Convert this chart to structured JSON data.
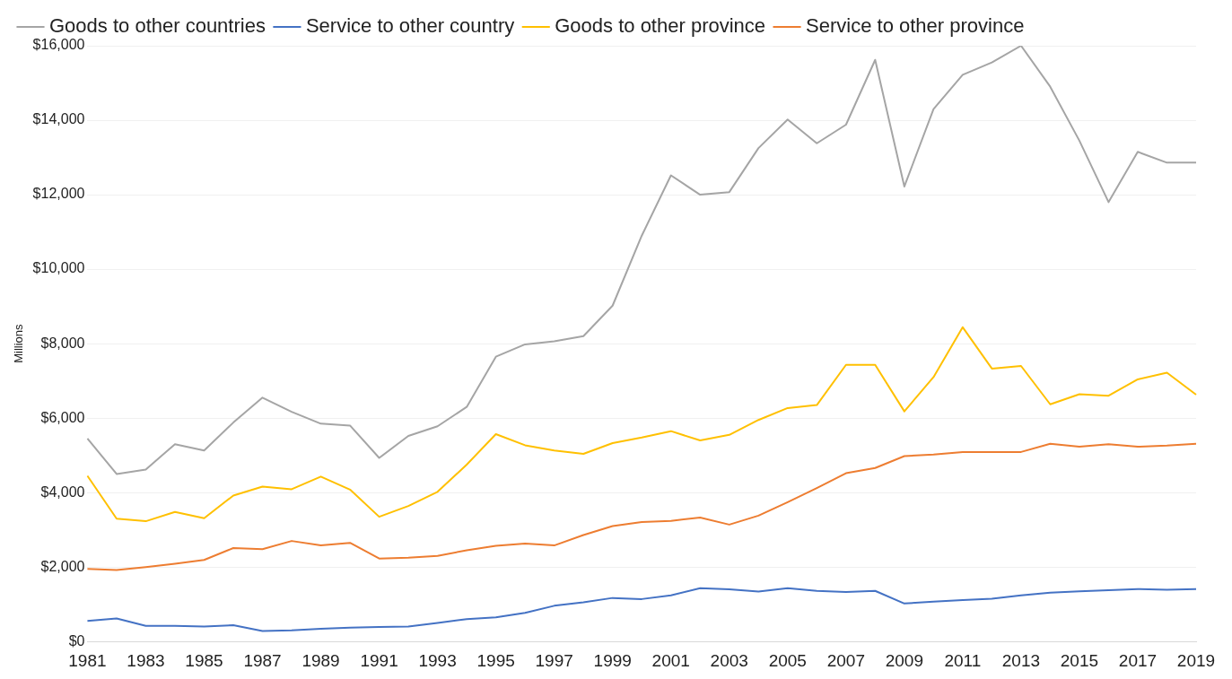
{
  "chart_data": {
    "type": "line",
    "ylabel": "Millions",
    "legend": "top",
    "grid": "y",
    "marker": "none",
    "line_style": "solid",
    "categories": [
      "1981",
      null,
      "1983",
      null,
      "1985",
      null,
      "1987",
      null,
      "1989",
      null,
      "1991",
      null,
      "1993",
      null,
      "1995",
      null,
      "1997",
      null,
      "1999",
      null,
      "2001",
      null,
      "2003",
      null,
      "2005",
      null,
      "2007",
      null,
      "2009",
      null,
      "2011",
      null,
      "2013",
      null,
      "2015",
      null,
      "2017",
      null,
      "2019"
    ],
    "ylim": [
      0,
      16000
    ],
    "yticks": [
      {
        "value": 0,
        "label": "$0"
      },
      {
        "value": 2000,
        "label": "$2,000"
      },
      {
        "value": 4000,
        "label": "$4,000"
      },
      {
        "value": 6000,
        "label": "$6,000"
      },
      {
        "value": 8000,
        "label": "$8,000"
      },
      {
        "value": 10000,
        "label": "$10,000"
      },
      {
        "value": 12000,
        "label": "$12,000"
      },
      {
        "value": 14000,
        "label": "$14,000"
      },
      {
        "value": 16000,
        "label": "$16,000"
      }
    ],
    "series": [
      {
        "name": "Goods to other countries",
        "color": "#a5a5a5",
        "values": [
          5450,
          4500,
          4620,
          5300,
          5130,
          5880,
          6550,
          6170,
          5850,
          5800,
          4930,
          5520,
          5780,
          6300,
          7650,
          7980,
          8060,
          8200,
          9020,
          10900,
          12520,
          12000,
          12070,
          13250,
          14020,
          13380,
          13880,
          15620,
          12220,
          14300,
          15220,
          15550,
          16000,
          14900,
          13450,
          11800,
          13150,
          12860,
          12860
        ]
      },
      {
        "name": "Service to other country",
        "color": "#4472c4",
        "values": [
          550,
          620,
          420,
          420,
          400,
          440,
          280,
          300,
          340,
          370,
          390,
          400,
          500,
          600,
          650,
          770,
          960,
          1050,
          1170,
          1140,
          1240,
          1430,
          1400,
          1340,
          1430,
          1360,
          1330,
          1360,
          1020,
          1070,
          1110,
          1150,
          1240,
          1310,
          1350,
          1380,
          1410,
          1390,
          1410
        ]
      },
      {
        "name": "Goods to other province",
        "color": "#ffc000",
        "values": [
          4450,
          3300,
          3230,
          3480,
          3310,
          3920,
          4160,
          4090,
          4430,
          4080,
          3350,
          3640,
          4020,
          4750,
          5570,
          5270,
          5130,
          5040,
          5330,
          5480,
          5650,
          5400,
          5550,
          5950,
          6270,
          6350,
          7430,
          7430,
          6180,
          7100,
          8440,
          7330,
          7400,
          6370,
          6640,
          6600,
          7040,
          7220,
          6630
        ]
      },
      {
        "name": "Service to other province",
        "color": "#ed7d31",
        "values": [
          1950,
          1920,
          2000,
          2090,
          2190,
          2510,
          2480,
          2700,
          2580,
          2650,
          2230,
          2250,
          2300,
          2450,
          2570,
          2630,
          2580,
          2860,
          3100,
          3210,
          3240,
          3330,
          3140,
          3380,
          3740,
          4120,
          4520,
          4660,
          4980,
          5020,
          5090,
          5090,
          5090,
          5310,
          5230,
          5300,
          5230,
          5260,
          5310
        ]
      }
    ]
  }
}
